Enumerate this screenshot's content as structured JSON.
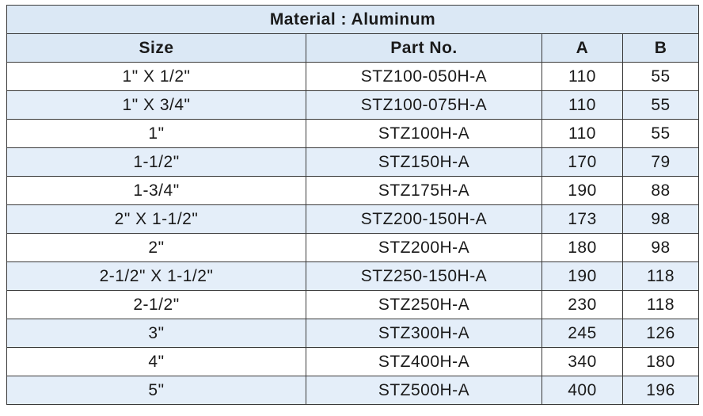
{
  "table": {
    "title": "Material : Aluminum",
    "header": [
      "Size",
      "Part No.",
      "A",
      "B"
    ],
    "rows": [
      [
        "1\" X 1/2\"",
        "STZ100-050H-A",
        "110",
        "55"
      ],
      [
        "1\" X 3/4\"",
        "STZ100-075H-A",
        "110",
        "55"
      ],
      [
        "1\"",
        "STZ100H-A",
        "110",
        "55"
      ],
      [
        "1-1/2\"",
        "STZ150H-A",
        "170",
        "79"
      ],
      [
        "1-3/4\"",
        "STZ175H-A",
        "190",
        "88"
      ],
      [
        "2\" X 1-1/2\"",
        "STZ200-150H-A",
        "173",
        "98"
      ],
      [
        "2\"",
        "STZ200H-A",
        "180",
        "98"
      ],
      [
        "2-1/2\" X 1-1/2\"",
        "STZ250-150H-A",
        "190",
        "118"
      ],
      [
        "2-1/2\"",
        "STZ250H-A",
        "230",
        "118"
      ],
      [
        "3\"",
        "STZ300H-A",
        "245",
        "126"
      ],
      [
        "4\"",
        "STZ400H-A",
        "340",
        "180"
      ],
      [
        "5\"",
        "STZ500H-A",
        "400",
        "196"
      ]
    ]
  }
}
